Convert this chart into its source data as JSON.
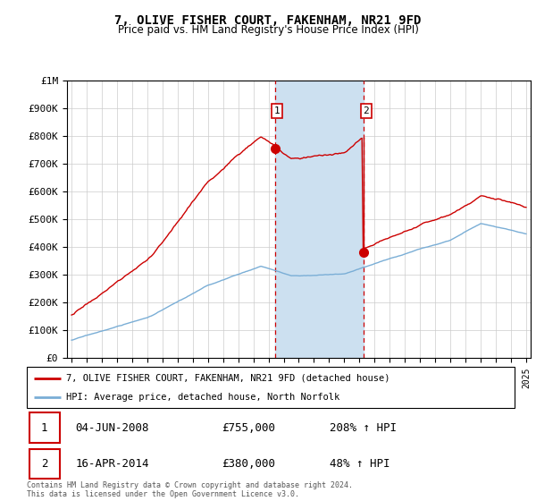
{
  "title": "7, OLIVE FISHER COURT, FAKENHAM, NR21 9FD",
  "subtitle": "Price paid vs. HM Land Registry's House Price Index (HPI)",
  "legend_label_red": "7, OLIVE FISHER COURT, FAKENHAM, NR21 9FD (detached house)",
  "legend_label_blue": "HPI: Average price, detached house, North Norfolk",
  "sale1_date_label": "04-JUN-2008",
  "sale1_price": 755000,
  "sale1_pct": "208% ↑ HPI",
  "sale2_date_label": "16-APR-2014",
  "sale2_price": 380000,
  "sale2_pct": "48% ↑ HPI",
  "sale1_x": 2008.42,
  "sale2_x": 2014.29,
  "footnote": "Contains HM Land Registry data © Crown copyright and database right 2024.\nThis data is licensed under the Open Government Licence v3.0.",
  "ylim": [
    0,
    1000000
  ],
  "xlim": [
    1994.7,
    2025.3
  ],
  "red_color": "#cc0000",
  "blue_color": "#7aaed6",
  "shade_color": "#cce0f0",
  "title_fontsize": 10,
  "subtitle_fontsize": 8.5
}
